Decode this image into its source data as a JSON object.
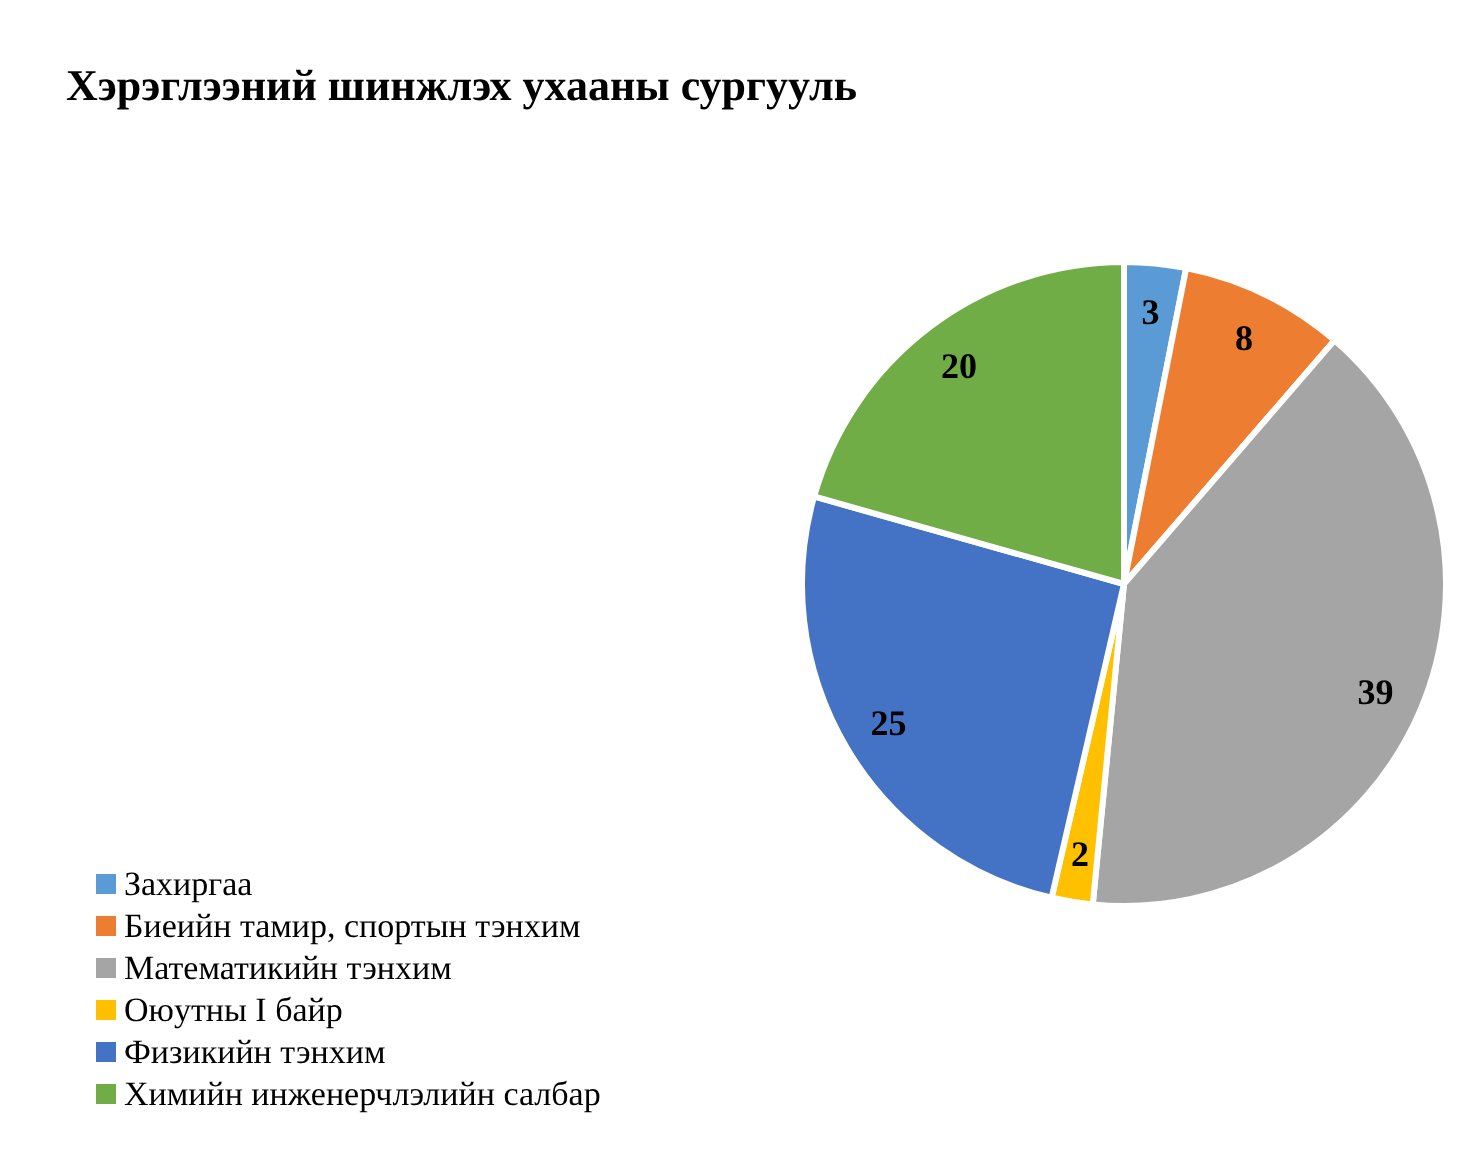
{
  "chart_data": {
    "type": "pie",
    "title": "Хэрэглээний шинжлэх ухааны сургууль",
    "categories": [
      "Захиргаа",
      "Биеийн тамир, спортын тэнхим",
      "Математикийн тэнхим",
      "Оюутны I байр",
      "Физикийн тэнхим",
      "Химийн инженерчлэлийн салбар"
    ],
    "values": [
      3,
      8,
      39,
      2,
      25,
      20
    ],
    "colors": [
      "#5b9bd5",
      "#ed7d31",
      "#a5a5a5",
      "#ffc000",
      "#4472c4",
      "#70ad47"
    ],
    "data_labels": true,
    "legend": "bottom left"
  }
}
